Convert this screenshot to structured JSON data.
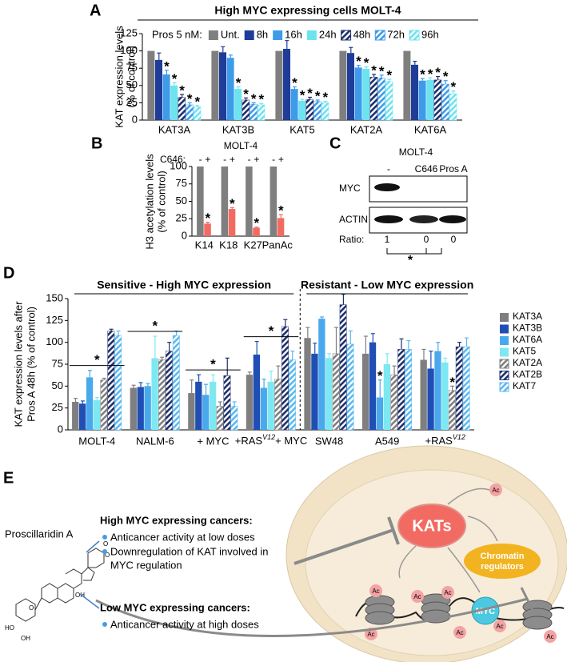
{
  "chart_data": [
    {
      "panel": "A",
      "type": "bar",
      "title": "High MYC expressing cells MOLT-4",
      "ylabel": [
        "KAT expression levels",
        "(% of control)"
      ],
      "legend_title": "Pros 5 nM:",
      "categories": [
        "KAT3A",
        "KAT3B",
        "KAT5",
        "KAT2A",
        "KAT6A"
      ],
      "series": [
        {
          "name": "Unt.",
          "color": "#7f7f7f",
          "values": [
            100,
            100,
            100,
            100,
            100
          ],
          "errors": [
            0,
            0,
            0,
            0,
            0
          ],
          "significance": [
            null,
            null,
            null,
            null,
            null
          ]
        },
        {
          "name": "8h",
          "color": "#1f3c99",
          "values": [
            87,
            98,
            103,
            97,
            80
          ],
          "errors": [
            10,
            8,
            12,
            8,
            5
          ],
          "significance": [
            null,
            null,
            null,
            null,
            null
          ]
        },
        {
          "name": "16h",
          "color": "#3d9be9",
          "values": [
            66,
            90,
            45,
            76,
            57
          ],
          "errors": [
            6,
            4,
            3,
            3,
            3
          ],
          "significance": [
            "*",
            null,
            "*",
            "*",
            "*"
          ]
        },
        {
          "name": "24h",
          "color": "#6ee3f0",
          "values": [
            50,
            45,
            28,
            74,
            58
          ],
          "errors": [
            4,
            3,
            2,
            3,
            3
          ],
          "significance": [
            "*",
            "*",
            "*",
            "*",
            "*"
          ]
        },
        {
          "name": "48h",
          "color": "#1f2f6b",
          "hatch": true,
          "values": [
            33,
            29,
            30,
            62,
            58
          ],
          "errors": [
            4,
            3,
            3,
            4,
            5
          ],
          "significance": [
            "*",
            "*",
            "*",
            "*",
            "*"
          ]
        },
        {
          "name": "72h",
          "color": "#3d9be9",
          "hatch": true,
          "values": [
            22,
            23,
            27,
            61,
            52
          ],
          "errors": [
            3,
            2,
            2,
            4,
            5
          ],
          "significance": [
            "*",
            "*",
            "*",
            "*",
            "*"
          ]
        },
        {
          "name": "96h",
          "color": "#6ee3f0",
          "hatch": true,
          "values": [
            19,
            22,
            25,
            56,
            38
          ],
          "errors": [
            2,
            2,
            2,
            3,
            4
          ],
          "significance": [
            "*",
            "*",
            "*",
            "*",
            "*"
          ]
        }
      ],
      "ylim": [
        0,
        125
      ],
      "yticks": [
        0,
        25,
        50,
        75,
        100,
        125
      ]
    },
    {
      "panel": "B",
      "type": "bar",
      "title": "MOLT-4",
      "ylabel": [
        "H3 acetylation levels",
        "(% of control)"
      ],
      "legend_title": "C646:",
      "categories": [
        "K14",
        "K18",
        "K27",
        "PanAc"
      ],
      "series": [
        {
          "name": "-",
          "color": "#7f7f7f",
          "values": [
            100,
            100,
            100,
            100
          ],
          "errors": [
            0,
            0,
            0,
            0
          ],
          "significance": [
            null,
            null,
            null,
            null
          ]
        },
        {
          "name": "+",
          "color": "#f26b63",
          "values": [
            18,
            39,
            12,
            26
          ],
          "errors": [
            2,
            2,
            1,
            5
          ],
          "significance": [
            "*",
            "*",
            "*",
            "*"
          ]
        }
      ],
      "ylim": [
        0,
        100
      ],
      "yticks": [
        0,
        25,
        50,
        75,
        100
      ]
    },
    {
      "panel": "D",
      "type": "bar",
      "ylabel": [
        "KAT expression levels after",
        "Pros A 48h (% of control)"
      ],
      "group_labels": [
        "Sensitive - High MYC expression",
        "Resistant - Low MYC expression"
      ],
      "categories": [
        "MOLT-4",
        "NALM-6",
        "+ MYC",
        {
          "text": "+RAS",
          "sup": "V12",
          "suffix": "+ MYC"
        },
        "SW48",
        "A549",
        {
          "text": "+RAS",
          "sup": "V12"
        }
      ],
      "group_significance": [
        "*",
        "*",
        "*",
        "*",
        null,
        null,
        null
      ],
      "series": [
        {
          "name": "KAT3A",
          "color": "#7f7f7f",
          "values": [
            32,
            48,
            42,
            63,
            105,
            87,
            80
          ],
          "errors": [
            4,
            3,
            15,
            3,
            12,
            20,
            12
          ],
          "significance": [
            null,
            null,
            null,
            null,
            null,
            null,
            null
          ]
        },
        {
          "name": "KAT3B",
          "color": "#1f4fb5",
          "values": [
            30,
            49,
            55,
            86,
            87,
            100,
            70
          ],
          "errors": [
            3,
            5,
            8,
            15,
            12,
            10,
            20
          ],
          "significance": [
            null,
            null,
            null,
            null,
            null,
            null,
            null
          ]
        },
        {
          "name": "KAT6A",
          "color": "#4aa8ec",
          "values": [
            60,
            50,
            40,
            48,
            127,
            37,
            90
          ],
          "errors": [
            8,
            3,
            12,
            10,
            2,
            20,
            10
          ],
          "significance": [
            null,
            null,
            null,
            null,
            null,
            "*",
            null
          ]
        },
        {
          "name": "KAT5",
          "color": "#7ee8f2",
          "values": [
            34,
            82,
            55,
            55,
            82,
            75,
            77
          ],
          "errors": [
            3,
            25,
            8,
            12,
            5,
            12,
            5
          ],
          "significance": [
            null,
            null,
            null,
            null,
            null,
            null,
            null
          ]
        },
        {
          "name": "KAT2A",
          "color": "#7f7f7f",
          "hatch": true,
          "values": [
            57,
            80,
            27,
            58,
            87,
            63,
            45
          ],
          "errors": [
            2,
            3,
            5,
            15,
            30,
            10,
            5
          ],
          "significance": [
            null,
            null,
            null,
            null,
            null,
            null,
            "*"
          ]
        },
        {
          "name": "KAT2B",
          "color": "#1f2f6b",
          "hatch": true,
          "values": [
            113,
            90,
            62,
            118,
            143,
            92,
            95
          ],
          "errors": [
            2,
            10,
            20,
            8,
            12,
            12,
            5
          ],
          "significance": [
            null,
            null,
            null,
            null,
            null,
            null,
            null
          ]
        },
        {
          "name": "KAT7",
          "color": "#5bb8f0",
          "hatch": true,
          "values": [
            108,
            108,
            27,
            80,
            98,
            92,
            95
          ],
          "errors": [
            5,
            5,
            5,
            10,
            15,
            10,
            10
          ],
          "significance": [
            null,
            null,
            null,
            null,
            null,
            null,
            null
          ]
        }
      ],
      "ylim": [
        0,
        150
      ],
      "yticks": [
        0,
        25,
        50,
        75,
        100,
        125,
        150
      ]
    }
  ],
  "panel_c": {
    "panel": "C",
    "title": "MOLT-4",
    "lanes": [
      "-",
      "C646",
      "Pros A"
    ],
    "rows": [
      "MYC",
      "ACTIN"
    ],
    "ratio_label": "Ratio:",
    "ratios": [
      1,
      0,
      0
    ],
    "significance": "*"
  },
  "panel_e": {
    "panel": "E",
    "compound": "Proscillaridin A",
    "molecule_labels": [
      "O",
      "O",
      "OH",
      "HO",
      "O",
      "OH"
    ],
    "groups": [
      {
        "heading": "High MYC expressing cancers:",
        "bullets": [
          [
            "Anticancer activity at low doses"
          ],
          [
            "Downregulation of KAT involved in",
            "MYC regulation"
          ]
        ]
      },
      {
        "heading": "Low MYC expressing cancers:",
        "bullets": [
          [
            "Anticancer activity at high doses"
          ]
        ]
      }
    ],
    "cell": {
      "kats": "KATs",
      "chromatin": [
        "Chromatin",
        "regulators"
      ],
      "myc": "MYC",
      "acetyl": "Ac"
    }
  }
}
